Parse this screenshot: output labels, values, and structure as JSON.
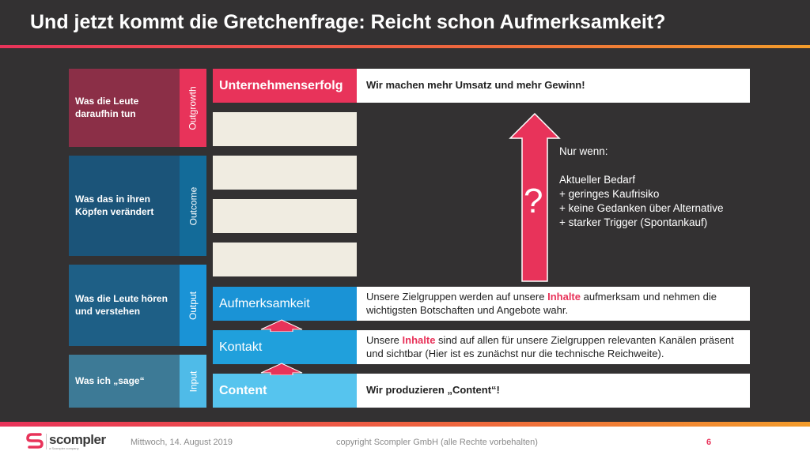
{
  "title": "Und jetzt kommt die Gretchenfrage: Reicht schon Aufmerksamkeit?",
  "levels": [
    {
      "label": "Was die Leute daraufhin tun",
      "tab": "Outgrowth",
      "bg": "#8b2f47",
      "tab_bg": "#e8335a"
    },
    {
      "label": "Was das in ihren Köpfen verändert",
      "tab": "Outcome",
      "bg": "#1b5479",
      "tab_bg": "#136b99"
    },
    {
      "label": "Was die Leute hören und verstehen",
      "tab": "Output",
      "bg": "#1e5f86",
      "tab_bg": "#1a93d6"
    },
    {
      "label": "Was ich „sage“",
      "tab": "Input",
      "bg": "#3d7a96",
      "tab_bg": "#4fbbe8"
    }
  ],
  "stages": {
    "top": {
      "label": "Unternehmenserfolg",
      "desc": "Wir machen mehr Umsatz und mehr Gewinn!",
      "color": "#e8335a"
    },
    "aufmerksamkeit": {
      "label": "Aufmerksamkeit",
      "desc_pre": "Unsere Zielgruppen werden auf unsere ",
      "desc_hl": "Inhalte",
      "desc_post": " aufmerksam und nehmen die wichtigsten Botschaften und Angebote wahr.",
      "color": "#1a93d6"
    },
    "kontakt": {
      "label": "Kontakt",
      "desc_pre": "Unsere ",
      "desc_hl": "Inhalte",
      "desc_post": " sind auf allen für unsere Zielgruppen relevanten Kanälen präsent und sichtbar (Hier ist es zunächst nur die technische Reichweite).",
      "color": "#20a0dc"
    },
    "content": {
      "label": "Content",
      "desc": "Wir produzieren „Content“!",
      "color": "#56c4ee"
    }
  },
  "question_mark": "?",
  "note": {
    "heading": "Nur wenn:",
    "lines": [
      "Aktueller Bedarf",
      "+ geringes Kaufrisiko",
      "+ keine Gedanken über Alternative",
      "+ starker Trigger (Spontankauf)"
    ]
  },
  "footer": {
    "logo": "scompler",
    "logo_sub": "a Scompler company",
    "date": "Mittwoch, 14. August 2019",
    "copyright": "copyright Scompler GmbH (alle Rechte vorbehalten)",
    "page": "6"
  }
}
